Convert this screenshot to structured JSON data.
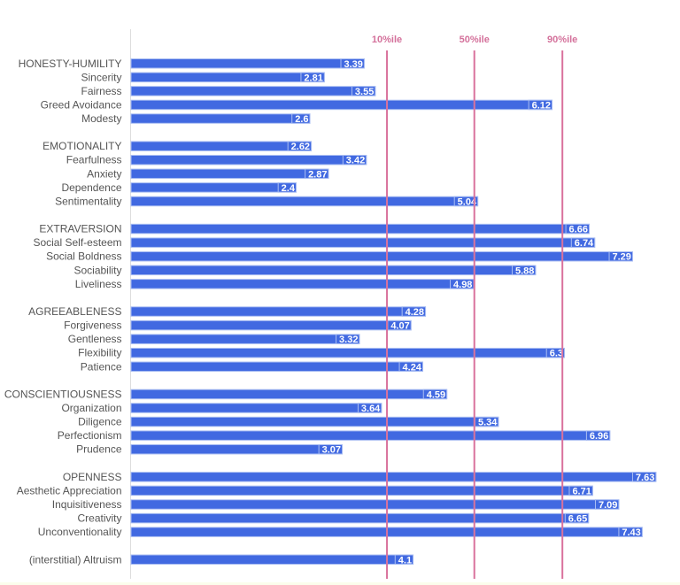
{
  "chart_data": {
    "type": "bar",
    "orientation": "horizontal",
    "title": "",
    "xlabel": "",
    "ylabel": "",
    "xlim": [
      0,
      8
    ],
    "grid": false,
    "legend": "none",
    "colors": {
      "bar": "#4169e1",
      "bar_border": "#a9bdf2",
      "reference_line": "#d9729c",
      "category_text": "#555555",
      "value_text": "#ffffff"
    },
    "reference_lines": [
      {
        "label": "10%ile",
        "value": 3.72
      },
      {
        "label": "50%ile",
        "value": 4.99
      },
      {
        "label": "90%ile",
        "value": 6.27
      }
    ],
    "categories": [
      "HONESTY-HUMILITY",
      "Sincerity",
      "Fairness",
      "Greed Avoidance",
      "Modesty",
      "",
      "EMOTIONALITY",
      "Fearfulness",
      "Anxiety",
      "Dependence",
      "Sentimentality",
      "",
      "EXTRAVERSION",
      "Social Self-esteem",
      "Social Boldness",
      "Sociability",
      "Liveliness",
      "",
      "AGREEABLENESS",
      "Forgiveness",
      "Gentleness",
      "Flexibility",
      "Patience",
      "",
      "CONSCIENTIOUSNESS",
      "Organization",
      "Diligence",
      "Perfectionism",
      "Prudence",
      "",
      "OPENNESS",
      "Aesthetic Appreciation",
      "Inquisitiveness",
      "Creativity",
      "Unconventionality",
      "",
      "(interstitial) Altruism"
    ],
    "values": [
      3.39,
      2.81,
      3.55,
      6.12,
      2.6,
      null,
      2.62,
      3.42,
      2.87,
      2.4,
      5.04,
      null,
      6.66,
      6.74,
      7.29,
      5.88,
      4.98,
      null,
      4.28,
      4.07,
      3.32,
      6.3,
      4.24,
      null,
      4.59,
      3.64,
      5.34,
      6.96,
      3.07,
      null,
      7.63,
      6.71,
      7.09,
      6.65,
      7.43,
      null,
      4.1
    ],
    "value_labels": [
      "3.39",
      "2.81",
      "3.55",
      "6.12",
      "2.6",
      "",
      "2.62",
      "3.42",
      "2.87",
      "2.4",
      "5.04",
      "",
      "6.66",
      "6.74",
      "7.29",
      "5.88",
      "4.98",
      "",
      "4.28",
      "4.07",
      "3.32",
      "6.3",
      "4.24",
      "",
      "4.59",
      "3.64",
      "5.34",
      "6.96",
      "3.07",
      "",
      "7.63",
      "6.71",
      "7.09",
      "6.65",
      "7.43",
      "",
      "4.1"
    ]
  }
}
